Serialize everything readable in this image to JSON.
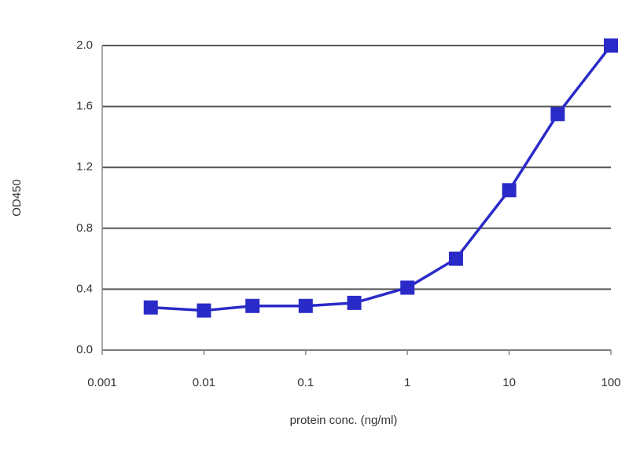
{
  "chart_data": {
    "type": "line",
    "x_label": "protein conc. (ng/ml)",
    "y_label": "OD450",
    "x": [
      0.003,
      0.01,
      0.03,
      0.1,
      0.3,
      1,
      3,
      10,
      30,
      100
    ],
    "series": [
      {
        "color": "#2a2ac8",
        "values": [
          0.28,
          0.26,
          0.29,
          0.29,
          0.31,
          0.41,
          0.6,
          1.05,
          1.55,
          2.0
        ]
      }
    ],
    "xlim": [
      0.001,
      100
    ],
    "xticks": [
      0.001,
      0.01,
      0.1,
      1,
      10,
      100
    ],
    "x_log": true,
    "ylim": [
      0,
      2
    ],
    "yticks": [
      {
        "value": 0,
        "label": "0.0"
      },
      0.4,
      0.8,
      1.2,
      1.6,
      {
        "value": 2,
        "label": "2.0"
      }
    ],
    "grid": true
  }
}
